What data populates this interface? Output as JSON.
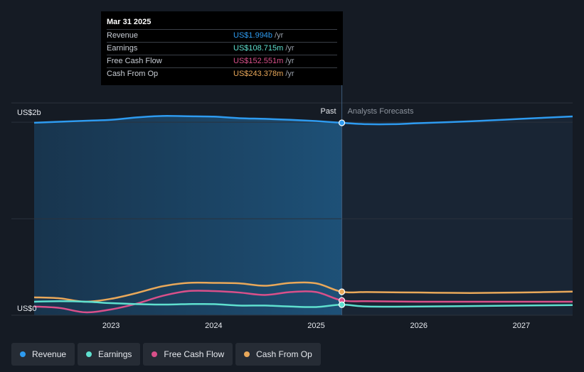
{
  "tooltip": {
    "date": "Mar 31 2025",
    "rows": [
      {
        "label": "Revenue",
        "value": "US$1.994b",
        "unit": "/yr",
        "color": "#2e9bf0"
      },
      {
        "label": "Earnings",
        "value": "US$108.715m",
        "unit": "/yr",
        "color": "#5fe0cf"
      },
      {
        "label": "Free Cash Flow",
        "value": "US$152.551m",
        "unit": "/yr",
        "color": "#d9508a"
      },
      {
        "label": "Cash From Op",
        "value": "US$243.378m",
        "unit": "/yr",
        "color": "#e9a85a"
      }
    ]
  },
  "legend": [
    {
      "label": "Revenue",
      "color": "#2e9bf0"
    },
    {
      "label": "Earnings",
      "color": "#5fe0cf"
    },
    {
      "label": "Free Cash Flow",
      "color": "#d9508a"
    },
    {
      "label": "Cash From Op",
      "color": "#e9a85a"
    }
  ],
  "chart_data": {
    "type": "line",
    "y_unit": "US$ billions",
    "y_ticks": [
      {
        "value": 2,
        "label": "US$2b"
      },
      {
        "value": 0,
        "label": "US$0"
      }
    ],
    "ylim": [
      0,
      2.2
    ],
    "xlim": [
      2022.25,
      2027.5
    ],
    "x_ticks": [
      {
        "value": 2023,
        "label": "2023"
      },
      {
        "value": 2024,
        "label": "2024"
      },
      {
        "value": 2025,
        "label": "2025"
      },
      {
        "value": 2026,
        "label": "2026"
      },
      {
        "value": 2027,
        "label": "2027"
      }
    ],
    "past_label": "Past",
    "forecast_label": "Analysts Forecasts",
    "divider_x": 2025.25,
    "grid": true,
    "legend_position": "bottom-left",
    "series": [
      {
        "name": "Revenue",
        "color": "#2e9bf0",
        "x": [
          2022.25,
          2022.75,
          2023.0,
          2023.25,
          2023.5,
          2023.75,
          2024.0,
          2024.25,
          2024.5,
          2024.75,
          2025.0,
          2025.25,
          2025.5,
          2025.75,
          2026.0,
          2026.5,
          2027.0,
          2027.5
        ],
        "y": [
          1.995,
          2.015,
          2.025,
          2.05,
          2.065,
          2.062,
          2.058,
          2.042,
          2.035,
          2.025,
          2.012,
          1.994,
          1.98,
          1.98,
          1.99,
          2.01,
          2.035,
          2.06
        ]
      },
      {
        "name": "Earnings",
        "color": "#5fe0cf",
        "x": [
          2022.25,
          2022.5,
          2022.75,
          2023.0,
          2023.25,
          2023.5,
          2023.75,
          2024.0,
          2024.25,
          2024.5,
          2024.75,
          2025.0,
          2025.25,
          2025.5,
          2026.0,
          2026.5,
          2027.0,
          2027.5
        ],
        "y": [
          0.14,
          0.145,
          0.14,
          0.125,
          0.115,
          0.11,
          0.115,
          0.115,
          0.1,
          0.1,
          0.09,
          0.085,
          0.109,
          0.09,
          0.09,
          0.095,
          0.1,
          0.105
        ]
      },
      {
        "name": "Free Cash Flow",
        "color": "#d9508a",
        "x": [
          2022.25,
          2022.5,
          2022.75,
          2023.0,
          2023.25,
          2023.5,
          2023.75,
          2024.0,
          2024.25,
          2024.5,
          2024.75,
          2025.0,
          2025.25,
          2025.5,
          2026.0,
          2026.5,
          2027.0,
          2027.5
        ],
        "y": [
          0.09,
          0.075,
          0.03,
          0.06,
          0.12,
          0.2,
          0.25,
          0.25,
          0.235,
          0.21,
          0.24,
          0.24,
          0.153,
          0.145,
          0.14,
          0.14,
          0.14,
          0.14
        ]
      },
      {
        "name": "Cash From Op",
        "color": "#e9a85a",
        "x": [
          2022.25,
          2022.5,
          2022.75,
          2023.0,
          2023.25,
          2023.5,
          2023.75,
          2024.0,
          2024.25,
          2024.5,
          2024.75,
          2025.0,
          2025.25,
          2025.5,
          2026.0,
          2026.5,
          2027.0,
          2027.5
        ],
        "y": [
          0.185,
          0.175,
          0.14,
          0.17,
          0.23,
          0.3,
          0.335,
          0.335,
          0.33,
          0.305,
          0.335,
          0.33,
          0.243,
          0.24,
          0.235,
          0.23,
          0.235,
          0.245
        ]
      }
    ]
  }
}
